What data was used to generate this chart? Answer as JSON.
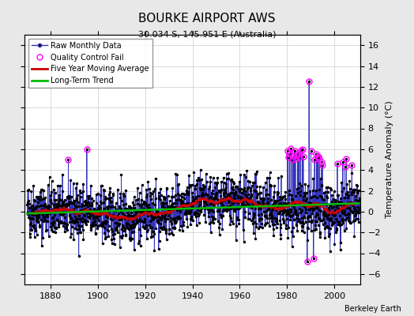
{
  "title": "BOURKE AIRPORT AWS",
  "subtitle": "30.034 S, 145.951 E (Australia)",
  "ylabel": "Temperature Anomaly (°C)",
  "credit": "Berkeley Earth",
  "ylim": [
    -7,
    17
  ],
  "yticks": [
    -6,
    -4,
    -2,
    0,
    2,
    4,
    6,
    8,
    10,
    12,
    14,
    16
  ],
  "xlim": [
    1869,
    2011
  ],
  "xticks": [
    1880,
    1900,
    1920,
    1940,
    1960,
    1980,
    2000
  ],
  "start_year": 1870,
  "end_year": 2010,
  "seed": 42,
  "raw_line_color": "#3333bb",
  "raw_dot_color": "#000000",
  "qc_color": "#ff00ff",
  "moving_avg_color": "#cc0000",
  "trend_color": "#00bb00",
  "background_color": "#e8e8e8",
  "plot_bg_color": "#ffffff",
  "grid_color": "#cccccc"
}
